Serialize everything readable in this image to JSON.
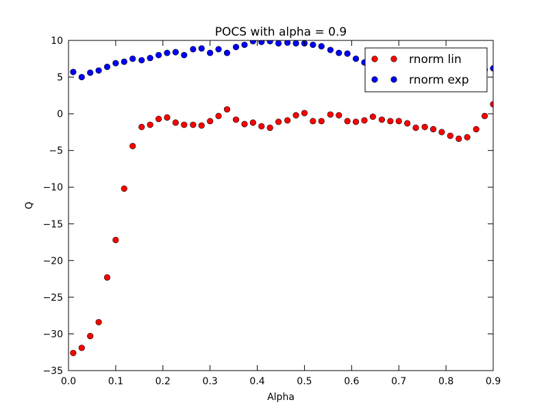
{
  "chart_data": {
    "type": "scatter",
    "title": "POCS with alpha = 0.9",
    "xlabel": "Alpha",
    "ylabel": "Q",
    "xlim": [
      0.0,
      0.9
    ],
    "ylim": [
      -35,
      10
    ],
    "xticks": [
      "0.0",
      "0.1",
      "0.2",
      "0.3",
      "0.4",
      "0.5",
      "0.6",
      "0.7",
      "0.8",
      "0.9"
    ],
    "yticks": [
      "−35",
      "−30",
      "−25",
      "−20",
      "−15",
      "−10",
      "−5",
      "0",
      "5",
      "10"
    ],
    "grid": false,
    "legend_position": "top-right",
    "series": [
      {
        "name": "rnorm lin",
        "color": "#ff0000",
        "points": [
          [
            0.01,
            -32.6
          ],
          [
            0.028,
            -31.9
          ],
          [
            0.046,
            -30.3
          ],
          [
            0.064,
            -28.4
          ],
          [
            0.082,
            -22.3
          ],
          [
            0.1,
            -17.2
          ],
          [
            0.118,
            -10.2
          ],
          [
            0.136,
            -4.4
          ],
          [
            0.155,
            -1.8
          ],
          [
            0.173,
            -1.5
          ],
          [
            0.191,
            -0.7
          ],
          [
            0.209,
            -0.5
          ],
          [
            0.227,
            -1.2
          ],
          [
            0.245,
            -1.5
          ],
          [
            0.264,
            -1.5
          ],
          [
            0.282,
            -1.6
          ],
          [
            0.3,
            -1.0
          ],
          [
            0.318,
            -0.3
          ],
          [
            0.336,
            0.6
          ],
          [
            0.355,
            -0.8
          ],
          [
            0.373,
            -1.4
          ],
          [
            0.391,
            -1.2
          ],
          [
            0.409,
            -1.7
          ],
          [
            0.427,
            -1.9
          ],
          [
            0.445,
            -1.1
          ],
          [
            0.464,
            -0.9
          ],
          [
            0.482,
            -0.2
          ],
          [
            0.5,
            0.1
          ],
          [
            0.518,
            -1.0
          ],
          [
            0.536,
            -1.0
          ],
          [
            0.555,
            -0.1
          ],
          [
            0.573,
            -0.2
          ],
          [
            0.591,
            -1.0
          ],
          [
            0.609,
            -1.1
          ],
          [
            0.627,
            -0.9
          ],
          [
            0.645,
            -0.4
          ],
          [
            0.664,
            -0.8
          ],
          [
            0.682,
            -1.0
          ],
          [
            0.7,
            -1.0
          ],
          [
            0.718,
            -1.3
          ],
          [
            0.736,
            -1.9
          ],
          [
            0.755,
            -1.8
          ],
          [
            0.773,
            -2.1
          ],
          [
            0.791,
            -2.5
          ],
          [
            0.809,
            -3.0
          ],
          [
            0.827,
            -3.4
          ],
          [
            0.845,
            -3.2
          ],
          [
            0.864,
            -2.1
          ],
          [
            0.882,
            -0.3
          ],
          [
            0.9,
            1.3
          ]
        ]
      },
      {
        "name": "rnorm exp",
        "color": "#0000ff",
        "points": [
          [
            0.01,
            5.7
          ],
          [
            0.028,
            5.0
          ],
          [
            0.046,
            5.6
          ],
          [
            0.064,
            5.9
          ],
          [
            0.082,
            6.4
          ],
          [
            0.1,
            6.9
          ],
          [
            0.118,
            7.1
          ],
          [
            0.136,
            7.5
          ],
          [
            0.155,
            7.3
          ],
          [
            0.173,
            7.6
          ],
          [
            0.191,
            8.0
          ],
          [
            0.209,
            8.3
          ],
          [
            0.227,
            8.4
          ],
          [
            0.245,
            8.0
          ],
          [
            0.264,
            8.8
          ],
          [
            0.282,
            8.9
          ],
          [
            0.3,
            8.3
          ],
          [
            0.318,
            8.8
          ],
          [
            0.336,
            8.3
          ],
          [
            0.355,
            9.1
          ],
          [
            0.373,
            9.4
          ],
          [
            0.391,
            9.9
          ],
          [
            0.409,
            9.8
          ],
          [
            0.427,
            9.9
          ],
          [
            0.445,
            9.6
          ],
          [
            0.464,
            9.7
          ],
          [
            0.482,
            9.6
          ],
          [
            0.5,
            9.6
          ],
          [
            0.518,
            9.4
          ],
          [
            0.536,
            9.2
          ],
          [
            0.555,
            8.7
          ],
          [
            0.573,
            8.3
          ],
          [
            0.591,
            8.2
          ],
          [
            0.609,
            7.5
          ],
          [
            0.627,
            7.0
          ],
          [
            0.645,
            6.8
          ],
          [
            0.882,
            6.0
          ],
          [
            0.9,
            6.2
          ]
        ]
      }
    ]
  }
}
